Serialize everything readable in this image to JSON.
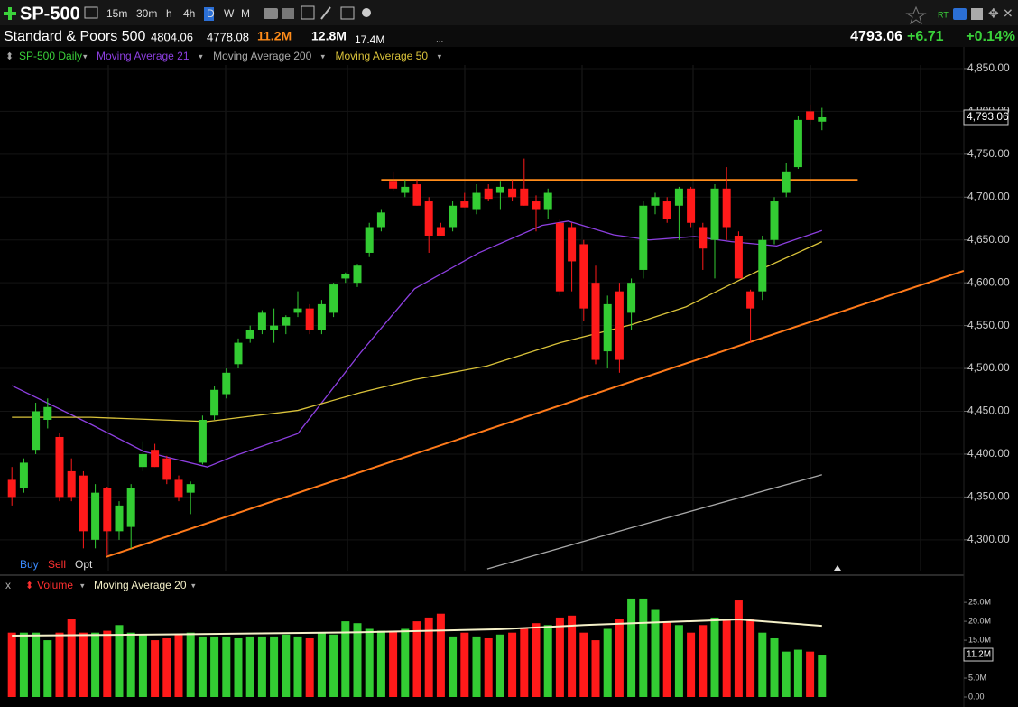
{
  "toolbar": {
    "symbol": "SP-500",
    "timeframes": [
      "15m",
      "30m",
      "h",
      "4h",
      "D",
      "W",
      "M"
    ],
    "active_timeframe": "D",
    "rt": "RT"
  },
  "quote": {
    "name": "Standard & Poors 500",
    "high": 4804.06,
    "low": 4778.08,
    "volume": "11.2M",
    "avg_volume": "12.8M",
    "volume_3": "17.4M",
    "more": "...",
    "last": 4793.06,
    "change": "+6.71",
    "change_pct": "+0.14%"
  },
  "trade": {
    "buy": "Buy",
    "sell": "Sell",
    "opt": "Opt"
  },
  "chart_data": [
    {
      "type": "candlestick",
      "title": "SP-500 Daily",
      "up_color": "#33cc33",
      "down_color": "#ff1a1a",
      "open": [
        4370,
        4360,
        4405,
        4440,
        4420,
        4380,
        4375,
        4300,
        4360,
        4310,
        4315,
        4385,
        4405,
        4395,
        4370,
        4355,
        4390,
        4445,
        4470,
        4505,
        4535,
        4545,
        4545,
        4550,
        4565,
        4570,
        4545,
        4565,
        4605,
        4600,
        4635,
        4665,
        4718,
        4705,
        4715,
        4695,
        4665,
        4665,
        4695,
        4685,
        4710,
        4705,
        4710,
        4710,
        4695,
        4685,
        4670,
        4665,
        4645,
        4600,
        4520,
        4590,
        4565,
        4615,
        4690,
        4695,
        4690,
        4710,
        4665,
        4650,
        4710,
        4655,
        4590,
        4590,
        4650,
        4705,
        4735,
        4800,
        4788
      ],
      "high": [
        4385,
        4395,
        4460,
        4465,
        4425,
        4395,
        4380,
        4365,
        4362,
        4345,
        4365,
        4415,
        4412,
        4398,
        4375,
        4368,
        4445,
        4480,
        4500,
        4535,
        4550,
        4568,
        4570,
        4562,
        4590,
        4575,
        4580,
        4600,
        4612,
        4622,
        4670,
        4685,
        4730,
        4720,
        4720,
        4700,
        4670,
        4695,
        4705,
        4715,
        4715,
        4718,
        4720,
        4745,
        4702,
        4710,
        4675,
        4670,
        4650,
        4620,
        4585,
        4600,
        4605,
        4695,
        4705,
        4700,
        4712,
        4712,
        4670,
        4715,
        4735,
        4660,
        4592,
        4655,
        4700,
        4740,
        4795,
        4808,
        4804.06
      ],
      "low": [
        4340,
        4355,
        4400,
        4430,
        4345,
        4345,
        4290,
        4290,
        4282,
        4300,
        4290,
        4380,
        4385,
        4365,
        4345,
        4330,
        4388,
        4440,
        4465,
        4500,
        4530,
        4540,
        4530,
        4540,
        4560,
        4540,
        4540,
        4560,
        4600,
        4595,
        4630,
        4660,
        4708,
        4700,
        4690,
        4635,
        4655,
        4660,
        4688,
        4680,
        4695,
        4685,
        4695,
        4690,
        4660,
        4675,
        4585,
        4590,
        4555,
        4505,
        4500,
        4495,
        4545,
        4605,
        4680,
        4670,
        4650,
        4665,
        4615,
        4605,
        4650,
        4605,
        4530,
        4580,
        4645,
        4700,
        4733,
        4785,
        4778.08
      ],
      "close": [
        4350,
        4390,
        4450,
        4455,
        4350,
        4350,
        4310,
        4355,
        4310,
        4340,
        4360,
        4400,
        4385,
        4370,
        4350,
        4365,
        4440,
        4475,
        4495,
        4530,
        4545,
        4565,
        4550,
        4560,
        4570,
        4545,
        4575,
        4598,
        4610,
        4620,
        4665,
        4682,
        4710,
        4712,
        4690,
        4655,
        4655,
        4690,
        4688,
        4705,
        4698,
        4712,
        4700,
        4690,
        4685,
        4705,
        4590,
        4625,
        4570,
        4510,
        4575,
        4510,
        4600,
        4690,
        4700,
        4675,
        4710,
        4670,
        4640,
        4710,
        4665,
        4605,
        4570,
        4650,
        4695,
        4730,
        4790,
        4790,
        4793.06
      ],
      "close_label": "4,793.06",
      "ylim": [
        4264,
        4851
      ],
      "yticks": [
        {
          "value": 4300,
          "label": "4,300.00"
        },
        {
          "value": 4350,
          "label": "4,350.00"
        },
        {
          "value": 4400,
          "label": "4,400.00"
        },
        {
          "value": 4450,
          "label": "4,450.00"
        },
        {
          "value": 4500,
          "label": "4,500.00"
        },
        {
          "value": 4550,
          "label": "4,550.00"
        },
        {
          "value": 4600,
          "label": "4,600.00"
        },
        {
          "value": 4650,
          "label": "4,650.00"
        },
        {
          "value": 4700,
          "label": "4,700.00"
        },
        {
          "value": 4750,
          "label": "4,750.00"
        },
        {
          "value": 4800,
          "label": "4,800.00"
        },
        {
          "value": 4850,
          "label": "4,850.00"
        }
      ],
      "series": [
        {
          "name": "Moving Average 21",
          "color": "#8d3fe0",
          "x": [
            0,
            6.6,
            11.1,
            16.4,
            18.7,
            24,
            29.3,
            33.8,
            39.2,
            44.5,
            46.7,
            50.5,
            53.5,
            57.3,
            60.4,
            64.2,
            68
          ],
          "values": [
            4480,
            4435,
            4403,
            4385,
            4398,
            4424,
            4519,
            4593,
            4635,
            4667,
            4672,
            4656,
            4650,
            4654,
            4648,
            4643,
            4661
          ]
        },
        {
          "name": "Moving Average 200",
          "color": "#a8a8a8",
          "x": [
            39.9,
            52,
            68
          ],
          "values": [
            4266,
            4314,
            4376
          ]
        },
        {
          "name": "Moving Average 50",
          "color": "#d9c23a",
          "x": [
            0,
            6.6,
            16.4,
            24,
            29.3,
            33.8,
            39.9,
            46,
            52,
            56.6,
            59.6,
            63.4,
            68
          ],
          "values": [
            4443,
            4443,
            4438,
            4451,
            4472,
            4487,
            4503,
            4530,
            4551,
            4572,
            4593,
            4619,
            4648
          ]
        }
      ],
      "lines": [
        {
          "color": "#ff8c1a",
          "x": [
            31,
            71
          ],
          "values": [
            4720,
            4720
          ]
        },
        {
          "color": "#ff7a1a",
          "x": [
            7.9,
            79.9
          ],
          "values": [
            4280,
            4614
          ]
        }
      ]
    },
    {
      "type": "bar",
      "title": "Volume",
      "up_color": "#33cc33",
      "down_color": "#ff1a1a",
      "values": [
        17,
        17,
        17,
        15,
        17,
        20.5,
        17,
        17,
        17.5,
        19,
        17,
        16.5,
        15,
        15.5,
        16.5,
        17,
        16,
        16,
        16,
        15.5,
        16,
        16,
        16,
        16.5,
        16,
        15.5,
        17,
        16.5,
        20,
        19.5,
        18,
        17.5,
        17.5,
        18,
        20,
        21,
        22,
        16,
        17,
        16,
        15.5,
        16.5,
        17,
        18,
        19.5,
        19,
        21,
        21.5,
        17,
        15,
        18,
        20.5,
        26,
        26,
        23,
        20,
        19,
        17,
        19,
        21,
        20.5,
        25.5,
        20.5,
        17,
        15.5,
        12,
        12.5,
        12,
        11.2
      ],
      "last_label": "11.2M",
      "ylim": [
        0,
        26.7
      ],
      "yticks": [
        {
          "value": 0,
          "label": "0.00"
        },
        {
          "value": 5,
          "label": "5.0M"
        },
        {
          "value": 10,
          "label": "10.0M"
        },
        {
          "value": 15,
          "label": "15.0M"
        },
        {
          "value": 20,
          "label": "20.0M"
        },
        {
          "value": 25,
          "label": "25.0M"
        }
      ],
      "series": [
        {
          "name": "Moving Average 20",
          "color": "#f4f0c8",
          "x": [
            0,
            15,
            29.3,
            41,
            48,
            61,
            68
          ],
          "values": [
            16.2,
            16.6,
            17.1,
            17.9,
            19,
            20.5,
            18.8
          ]
        }
      ]
    }
  ]
}
